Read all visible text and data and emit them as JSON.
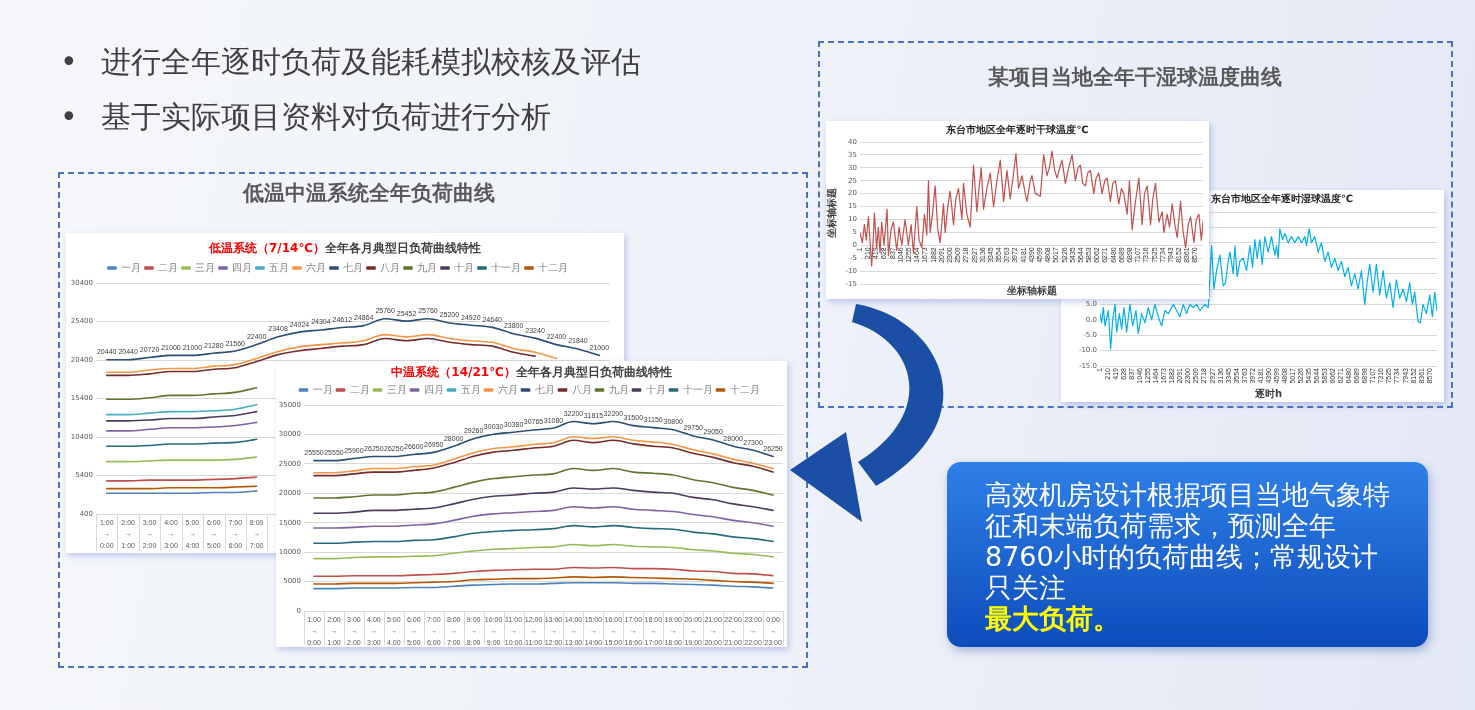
{
  "chart_data": [
    {
      "type": "other",
      "annotations": [
        "• 进行全年逐时负荷及能耗模拟校核及评估",
        "• 基于实际项目资料对负荷进行分析"
      ]
    },
    {
      "type": "other",
      "title": "低温中温系统全年负荷曲线"
    },
    {
      "type": "line",
      "title": "低温系统（7/14℃）",
      "subtitle": "全年各月典型日负荷曲线特性",
      "categories": [
        "1:00\n→\n0:00",
        "2:00\n→\n1:00",
        "3:00\n→\n2:00",
        "4:00\n→\n3:00",
        "5:00\n→\n4:00",
        "6:00\n→\n5:00",
        "7:00\n→\n6:00",
        "8:00\n→\n7:00",
        null,
        null,
        null,
        null,
        null,
        null,
        null,
        null,
        null,
        null,
        null,
        null,
        null,
        null,
        null,
        null
      ],
      "series": [
        {
          "name": "一月",
          "color": "#4f81bd",
          "values": [
            3100,
            3100,
            3100,
            3100,
            3100,
            3200,
            3200,
            3400,
            null,
            null,
            null,
            null,
            null,
            null,
            null,
            null,
            null,
            null,
            null,
            null,
            null,
            null,
            null,
            null
          ]
        },
        {
          "name": "二月",
          "color": "#c0504d",
          "values": [
            4700,
            4700,
            4800,
            4800,
            4800,
            4900,
            5000,
            5200,
            null,
            null,
            null,
            null,
            null,
            null,
            null,
            null,
            null,
            null,
            null,
            null,
            null,
            null,
            null,
            null
          ]
        },
        {
          "name": "三月",
          "color": "#9bbb59",
          "values": [
            7200,
            7200,
            7300,
            7400,
            7400,
            7400,
            7500,
            7800,
            null,
            null,
            null,
            null,
            null,
            null,
            null,
            null,
            null,
            null,
            null,
            null,
            null,
            null,
            null,
            null
          ]
        },
        {
          "name": "四月",
          "color": "#8064a2",
          "values": [
            11200,
            11200,
            11400,
            11600,
            11600,
            11700,
            11900,
            12300,
            null,
            null,
            null,
            null,
            null,
            null,
            null,
            null,
            null,
            null,
            null,
            null,
            null,
            null,
            null,
            null
          ]
        },
        {
          "name": "五月",
          "color": "#4bacc6",
          "values": [
            13300,
            13300,
            13500,
            13700,
            13700,
            13800,
            14000,
            14600,
            null,
            null,
            null,
            null,
            null,
            null,
            null,
            null,
            null,
            null,
            null,
            null,
            null,
            null,
            null,
            null
          ]
        },
        {
          "name": "六月",
          "color": "#f79646",
          "values": [
            18800,
            18800,
            19100,
            19300,
            19300,
            19600,
            19800,
            20600,
            21500,
            22100,
            22400,
            22600,
            22900,
            23700,
            23400,
            23700,
            23200,
            22900,
            22700,
            21900,
            21400,
            20600,
            null,
            null
          ]
        },
        {
          "name": "七月",
          "color": "#2c4d75",
          "values": [
            20440,
            20440,
            20720,
            21000,
            21000,
            21280,
            21560,
            22400,
            23408,
            24024,
            24304,
            24612,
            24864,
            25760,
            25452,
            25760,
            25200,
            24920,
            24640,
            23800,
            23240,
            22400,
            21840,
            21000
          ],
          "value_labels": [
            "20440",
            "20440",
            "20720",
            "21000",
            "21000",
            "21280",
            "21560",
            "22400",
            "23408",
            "24024",
            "24304",
            "24612",
            "24864",
            "25760",
            "25452",
            "25760",
            "25200",
            "24920",
            "24640",
            "23800",
            "23240",
            "22400",
            "21840",
            "21000"
          ]
        },
        {
          "name": "八月",
          "color": "#772c2a",
          "values": [
            18400,
            18400,
            18600,
            18900,
            18900,
            19200,
            19400,
            20200,
            21100,
            21600,
            21900,
            22200,
            22400,
            23200,
            22900,
            23200,
            22700,
            22400,
            22200,
            21400,
            20900,
            null,
            null,
            null
          ]
        },
        {
          "name": "九月",
          "color": "#5f7530",
          "values": [
            15300,
            15300,
            15500,
            15800,
            15800,
            16000,
            16200,
            16800,
            null,
            null,
            null,
            null,
            null,
            null,
            null,
            null,
            null,
            null,
            null,
            null,
            null,
            null,
            null,
            null
          ]
        },
        {
          "name": "十月",
          "color": "#4d3b62",
          "values": [
            12500,
            12500,
            12600,
            12800,
            12800,
            13000,
            13200,
            13700,
            null,
            null,
            null,
            null,
            null,
            null,
            null,
            null,
            null,
            null,
            null,
            null,
            null,
            null,
            null,
            null
          ]
        },
        {
          "name": "十一月",
          "color": "#276a7c",
          "values": [
            9200,
            9200,
            9300,
            9500,
            9500,
            9600,
            9700,
            10100,
            null,
            null,
            null,
            null,
            null,
            null,
            null,
            null,
            null,
            null,
            null,
            null,
            null,
            null,
            null,
            null
          ]
        },
        {
          "name": "十二月",
          "color": "#b65708",
          "values": [
            3700,
            3700,
            3700,
            3800,
            3800,
            3800,
            3900,
            4000,
            null,
            null,
            null,
            null,
            null,
            null,
            null,
            null,
            null,
            null,
            null,
            null,
            null,
            null,
            null,
            null
          ]
        }
      ],
      "ylim": [
        400,
        30400
      ],
      "yticks": [
        400,
        5400,
        10400,
        15400,
        20400,
        25400,
        30400
      ],
      "legend": "top",
      "grid": "y"
    },
    {
      "type": "line",
      "title": "中温系统（14/21℃）",
      "subtitle": "全年各月典型日负荷曲线特性",
      "categories": [
        "1:00\n→\n0:00",
        "2:00\n→\n1:00",
        "3:00\n→\n2:00",
        "4:00\n→\n3:00",
        "5:00\n→\n4:00",
        "6:00\n→\n5:00",
        "7:00\n→\n6:00",
        "8:00\n→\n7:00",
        "9:00\n→\n8:00",
        "10:00\n→\n9:00",
        "11:00\n→\n10:00",
        "12:00\n→\n11:00",
        "13:00\n→\n12:00",
        "14:00\n→\n13:00",
        "15:00\n→\n14:00",
        "16:00\n→\n15:00",
        "17:00\n→\n16:00",
        "18:00\n→\n17:00",
        "19:00\n→\n18:00",
        "20:00\n→\n19:00",
        "21:00\n→\n20:00",
        "22:00\n→\n21:00",
        "23:00\n→\n22:00",
        "0:00\n→\n23:00"
      ],
      "series": [
        {
          "name": "一月",
          "color": "#4f81bd",
          "values": [
            3800,
            3800,
            3900,
            3900,
            3900,
            4000,
            4000,
            4200,
            4400,
            4500,
            4600,
            4600,
            4700,
            4800,
            4800,
            4800,
            4700,
            4700,
            4600,
            4500,
            4400,
            4200,
            4100,
            3900
          ]
        },
        {
          "name": "二月",
          "color": "#c0504d",
          "values": [
            5900,
            5900,
            6000,
            6000,
            6000,
            6100,
            6200,
            6400,
            6700,
            6900,
            7000,
            7100,
            7100,
            7400,
            7300,
            7400,
            7200,
            7200,
            7100,
            6800,
            6700,
            6400,
            6300,
            6000
          ]
        },
        {
          "name": "三月",
          "color": "#9bbb59",
          "values": [
            8900,
            8900,
            9100,
            9200,
            9200,
            9300,
            9400,
            9800,
            10200,
            10500,
            10600,
            10800,
            10900,
            11300,
            11100,
            11300,
            11000,
            10900,
            10800,
            10400,
            10200,
            9800,
            9600,
            9200
          ]
        },
        {
          "name": "四月",
          "color": "#8064a2",
          "values": [
            14100,
            14100,
            14200,
            14400,
            14400,
            14600,
            14800,
            15400,
            16100,
            16500,
            16700,
            16900,
            17100,
            17700,
            17500,
            17700,
            17300,
            17100,
            16900,
            16400,
            16000,
            15400,
            15000,
            14400
          ]
        },
        {
          "name": "五月",
          "color": "#4bacc6",
          "values": [
            null,
            null,
            null,
            null,
            null,
            null,
            null,
            null,
            null,
            null,
            null,
            null,
            null,
            null,
            null,
            null,
            null,
            null,
            null,
            null,
            null,
            null,
            null,
            null
          ]
        },
        {
          "name": "六月",
          "color": "#f79646",
          "values": [
            23500,
            23500,
            23800,
            24200,
            24200,
            24500,
            24800,
            25800,
            26900,
            27600,
            27900,
            28300,
            28600,
            29600,
            29300,
            29600,
            29000,
            28700,
            28300,
            27400,
            26700,
            25800,
            25100,
            24200
          ]
        },
        {
          "name": "七月",
          "color": "#2c4d75",
          "values": [
            25550,
            25550,
            25900,
            26250,
            26250,
            26600,
            26950,
            28000,
            29260,
            30030,
            30380,
            30765,
            31080,
            32200,
            31815,
            32200,
            31500,
            31150,
            30800,
            29750,
            29050,
            28000,
            27300,
            26250
          ],
          "value_labels": [
            "25550",
            "25550",
            "25900",
            "26250",
            "26250",
            "26600",
            "26950",
            "28000",
            "29260",
            "30030",
            "30380",
            "30765",
            "31080",
            "32200",
            "31815",
            "32200",
            "31500",
            "31150",
            "30800",
            "29750",
            "29050",
            "28000",
            "27300",
            "26250"
          ]
        },
        {
          "name": "八月",
          "color": "#772c2a",
          "values": [
            23000,
            23000,
            23300,
            23600,
            23600,
            23900,
            24300,
            25200,
            26300,
            27000,
            27300,
            27700,
            28000,
            29000,
            28600,
            29000,
            28400,
            28000,
            27700,
            26800,
            26100,
            25200,
            24600,
            23600
          ]
        },
        {
          "name": "九月",
          "color": "#5f7530",
          "values": [
            19200,
            19200,
            19400,
            19700,
            19700,
            20000,
            20200,
            21000,
            21900,
            22500,
            22800,
            23100,
            23300,
            24200,
            23900,
            24200,
            23600,
            23400,
            23100,
            22300,
            21800,
            21000,
            20500,
            19700
          ]
        },
        {
          "name": "十月",
          "color": "#4d3b62",
          "values": [
            16600,
            16600,
            16800,
            17100,
            17100,
            17300,
            17500,
            18200,
            19000,
            19500,
            19700,
            20000,
            20200,
            20900,
            20700,
            20900,
            20500,
            20200,
            20000,
            19300,
            18900,
            18200,
            17700,
            17100
          ]
        },
        {
          "name": "十一月",
          "color": "#276a7c",
          "values": [
            11500,
            11500,
            11700,
            11800,
            11800,
            12000,
            12100,
            12600,
            13200,
            13500,
            13700,
            13800,
            14000,
            14500,
            14300,
            14500,
            14200,
            14000,
            13900,
            13400,
            13100,
            12600,
            12300,
            11800
          ]
        },
        {
          "name": "十二月",
          "color": "#b65708",
          "values": [
            4600,
            4600,
            4700,
            4700,
            4700,
            4800,
            4900,
            5000,
            5300,
            5400,
            5500,
            5500,
            5600,
            5800,
            5700,
            5800,
            5700,
            5600,
            5500,
            5400,
            5200,
            5000,
            4900,
            4700
          ]
        }
      ],
      "ylim": [
        0,
        35000
      ],
      "yticks": [
        0,
        5000,
        10000,
        15000,
        20000,
        25000,
        30000,
        35000
      ],
      "legend": "top",
      "grid": "y"
    },
    {
      "type": "other",
      "title": "某项目当地全年干湿球温度曲线"
    },
    {
      "type": "line",
      "title": "东台市地区全年逐时干球温度℃",
      "xlabel": "坐标轴标题",
      "ylabel": "坐标轴标题",
      "color": "#c0504d",
      "x": [
        1,
        61,
        112,
        163,
        214,
        265,
        299,
        342,
        368,
        427,
        470,
        513,
        555,
        615,
        692,
        726,
        794,
        854,
        939,
        999,
        1067,
        1152,
        1237,
        1306,
        1365,
        1451,
        1510,
        1579,
        1647,
        1706,
        1749,
        1792,
        1851,
        1920,
        1988,
        2047,
        2133,
        2175,
        2244,
        2303,
        2389,
        2448,
        2517,
        2602,
        2644,
        2730,
        2815,
        2900,
        2986,
        3028,
        3096,
        3156,
        3241,
        3327,
        3412,
        3497,
        3582,
        3668,
        3753,
        3838,
        3923,
        3983,
        4051,
        4137,
        4222,
        4265,
        4350,
        4392,
        4478,
        4606,
        4691,
        4776,
        4836,
        4904,
        4972,
        5032,
        5117,
        5160,
        5245,
        5330,
        5416,
        5501,
        5569,
        5629,
        5689,
        5757,
        5816,
        5885,
        5970,
        6030,
        6098,
        6183,
        6251,
        6311,
        6396,
        6456,
        6524,
        6609,
        6678,
        6737,
        6823,
        6882,
        6951,
        7036,
        7121,
        7206,
        7266,
        7334,
        7420,
        7479,
        7547,
        7633,
        7718,
        7761,
        7846,
        7906,
        7974,
        8042,
        8102,
        8187,
        8247,
        8315,
        8383,
        8443,
        8528,
        8588,
        8656,
        8716,
        8760
      ],
      "values": [
        5,
        1,
        8,
        2,
        11,
        0,
        -8,
        3,
        12.5,
        -1,
        7,
        -3,
        9,
        0,
        14,
        -4,
        6,
        9,
        -2,
        7,
        0,
        10,
        0,
        8,
        -3,
        15,
        2,
        -1,
        12,
        4,
        25,
        5,
        12,
        23,
        6,
        1,
        16,
        5,
        15,
        21,
        8,
        18,
        22,
        10,
        24,
        12,
        7,
        31,
        13,
        20,
        30,
        14,
        22,
        28,
        15,
        25,
        33,
        17,
        29,
        18,
        28,
        35.5,
        22,
        27,
        20,
        17,
        25,
        27,
        20,
        19,
        35,
        27,
        30,
        36.5,
        29,
        26,
        31,
        33,
        24,
        30,
        35,
        25,
        30,
        31,
        24,
        23,
        28,
        29,
        20,
        26,
        28,
        20,
        25,
        26,
        17,
        24,
        25,
        16,
        22,
        20,
        12,
        25,
        6,
        17,
        26,
        8,
        20,
        23,
        8,
        18,
        24,
        9,
        13,
        5,
        12,
        7,
        16,
        8,
        3,
        17,
        6,
        -1,
        8,
        11,
        1,
        10,
        12,
        2,
        9
      ],
      "xlim": [
        1,
        8760
      ],
      "xticks": [
        1,
        210,
        419,
        628,
        837,
        1046,
        1255,
        1464,
        1673,
        1882,
        2091,
        2300,
        2509,
        2718,
        2927,
        3136,
        3345,
        3554,
        3763,
        3972,
        4181,
        4390,
        4599,
        4808,
        5017,
        5226,
        5435,
        5644,
        5853,
        6062,
        6271,
        6480,
        6689,
        6898,
        7107,
        7316,
        7525,
        7734,
        7943,
        8152,
        8361,
        8570
      ],
      "ylim": [
        -15,
        40
      ],
      "yticks": [
        -15,
        -10,
        -5,
        0,
        5,
        10,
        15,
        20,
        25,
        30,
        35,
        40
      ],
      "grid": "y"
    },
    {
      "type": "line",
      "title": "东台市地区全年逐时湿球温度℃",
      "xlabel": "逐时h",
      "color": "#00b0f0",
      "x": [
        1,
        44,
        88,
        131,
        217,
        278,
        330,
        391,
        434,
        503,
        564,
        624,
        693,
        780,
        849,
        936,
        996,
        1083,
        1170,
        1256,
        1343,
        1429,
        1516,
        1602,
        1689,
        1775,
        1905,
        1992,
        2078,
        2165,
        2252,
        2338,
        2425,
        2511,
        2598,
        2728,
        2814,
        2901,
        2961,
        3031,
        3117,
        3204,
        3264,
        3334,
        3377,
        3463,
        3507,
        3567,
        3636,
        3723,
        3810,
        3896,
        3965,
        4026,
        4087,
        4156,
        4216,
        4286,
        4372,
        4459,
        4545,
        4589,
        4632,
        4675,
        4745,
        4805,
        4892,
        4978,
        5065,
        5151,
        5238,
        5324,
        5368,
        5437,
        5497,
        5584,
        5671,
        5757,
        5844,
        5930,
        6017,
        6103,
        6190,
        6276,
        6363,
        6449,
        6536,
        6623,
        6709,
        6796,
        6882,
        6943,
        7012,
        7099,
        7185,
        7272,
        7359,
        7445,
        7532,
        7618,
        7705,
        7791,
        7878,
        7965,
        8051,
        8120,
        8181,
        8267,
        8328,
        8397,
        8484,
        8570,
        8640,
        8700,
        8760
      ],
      "values": [
        2,
        -1,
        4,
        -2,
        3,
        -9.5,
        0,
        5,
        -4,
        2,
        -3,
        4,
        -4,
        5,
        -2,
        3,
        -4.5,
        2,
        -1,
        4,
        0,
        5,
        1,
        -2,
        3,
        2,
        5,
        3,
        1,
        5,
        2,
        5,
        4,
        5,
        3,
        5,
        4,
        24,
        10,
        16,
        21,
        11,
        12,
        19,
        22,
        15,
        24,
        14,
        19,
        20,
        16,
        24,
        17,
        26,
        20,
        26,
        18,
        27,
        22,
        27,
        21,
        24,
        20,
        29.5,
        26,
        28,
        25,
        27,
        25,
        27,
        25,
        27,
        24,
        29.5,
        25,
        27,
        22,
        25,
        19,
        22,
        17,
        20,
        16,
        19,
        14,
        17,
        11,
        15,
        10,
        16,
        5,
        12,
        18,
        9,
        18,
        8,
        16,
        7,
        12,
        4,
        13,
        7,
        10,
        6,
        12,
        5,
        9,
        -0.5,
        -1,
        5,
        2,
        8,
        1,
        9,
        3
      ],
      "xlim": [
        1,
        8760
      ],
      "xticks": [
        1,
        210,
        419,
        628,
        837,
        1046,
        1255,
        1464,
        1673,
        1882,
        2091,
        2300,
        2509,
        2718,
        2927,
        3136,
        3345,
        3554,
        3763,
        3972,
        4181,
        4390,
        4599,
        4808,
        5017,
        5226,
        5435,
        5644,
        5853,
        6062,
        6271,
        6480,
        6689,
        6898,
        7107,
        7316,
        7525,
        7734,
        7943,
        8152,
        8361,
        8570
      ],
      "ylim": [
        -15,
        35
      ],
      "yticks": [
        {
          "value": -15,
          "label": "-15.0"
        },
        {
          "value": -10,
          "label": "-10.0"
        },
        {
          "value": -5,
          "label": "-5.0"
        },
        {
          "value": 0,
          "label": "0.0"
        },
        {
          "value": 5,
          "label": "5.0"
        },
        {
          "value": 10,
          "label": null
        },
        {
          "value": 15,
          "label": null
        },
        {
          "value": 20,
          "label": null
        },
        {
          "value": 25,
          "label": null
        },
        {
          "value": 30,
          "label": null
        },
        {
          "value": 35,
          "label": null
        }
      ],
      "grid": "y"
    },
    {
      "type": "other",
      "annotations": [
        "高效机房设计根据项目当地气象特征和末端负荷需求，预测全年8760小时的负荷曲线；常规设计只关注",
        "最大负荷。"
      ]
    }
  ]
}
